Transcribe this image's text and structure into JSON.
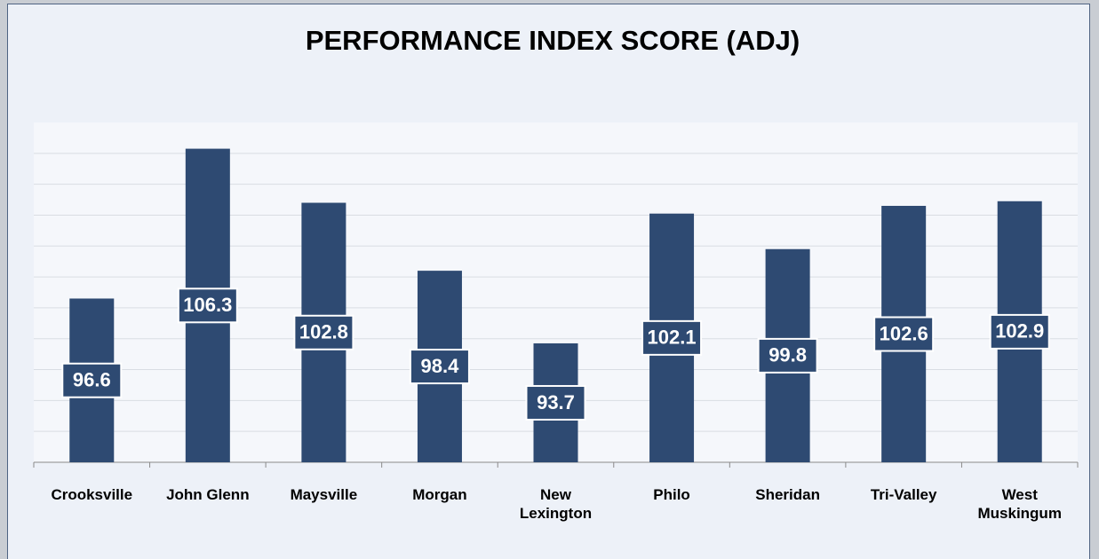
{
  "chart_data": {
    "type": "bar",
    "title": "PERFORMANCE INDEX SCORE (ADJ)",
    "categories": [
      "Crooksville",
      "John Glenn",
      "Maysville",
      "Morgan",
      "New Lexington",
      "Philo",
      "Sheridan",
      "Tri-Valley",
      "West Muskingum"
    ],
    "values": [
      96.6,
      106.3,
      102.8,
      98.4,
      93.7,
      102.1,
      99.8,
      102.6,
      102.9
    ],
    "color": "#2e4a72",
    "ylim": [
      86,
      108
    ],
    "yticks": [
      86,
      88,
      90,
      92,
      94,
      96,
      98,
      100,
      102,
      104,
      106
    ],
    "grid": true
  }
}
